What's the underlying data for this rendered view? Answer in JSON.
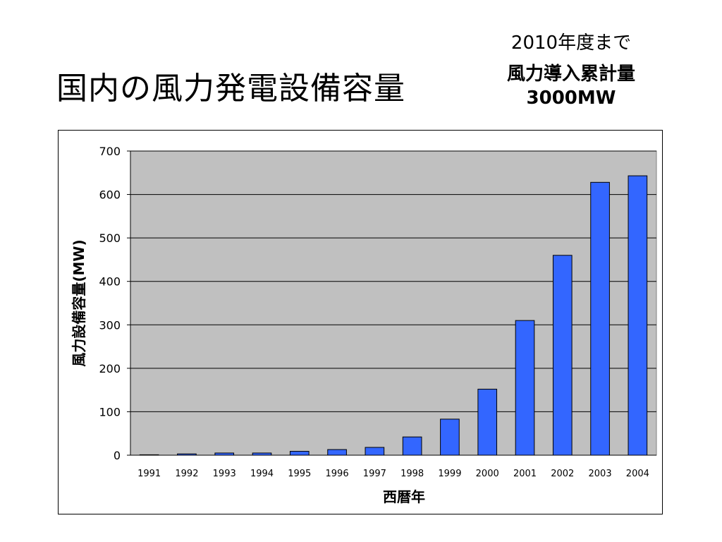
{
  "slide": {
    "title": "国内の風力発電設備容量"
  },
  "target_note": {
    "period": "2010年度まで",
    "heading": "風力導入累計量",
    "value": "3000MW"
  },
  "colors": {
    "bar": "#3366ff",
    "bar_stroke": "#000000",
    "plot_bg": "#c0c0c0",
    "grid": "#000000"
  },
  "chart_data": {
    "type": "bar",
    "title": "",
    "xlabel": "西暦年",
    "ylabel": "風力設備容量(MW)",
    "categories": [
      "1991",
      "1992",
      "1993",
      "1994",
      "1995",
      "1996",
      "1997",
      "1998",
      "1999",
      "2000",
      "2001",
      "2002",
      "2003",
      "2004"
    ],
    "values": [
      1,
      3,
      5,
      5,
      9,
      13,
      18,
      42,
      83,
      152,
      310,
      460,
      628,
      643
    ],
    "ylim": [
      0,
      700
    ],
    "yticks": [
      0,
      100,
      200,
      300,
      400,
      500,
      600,
      700
    ],
    "grid": true,
    "legend": false
  }
}
